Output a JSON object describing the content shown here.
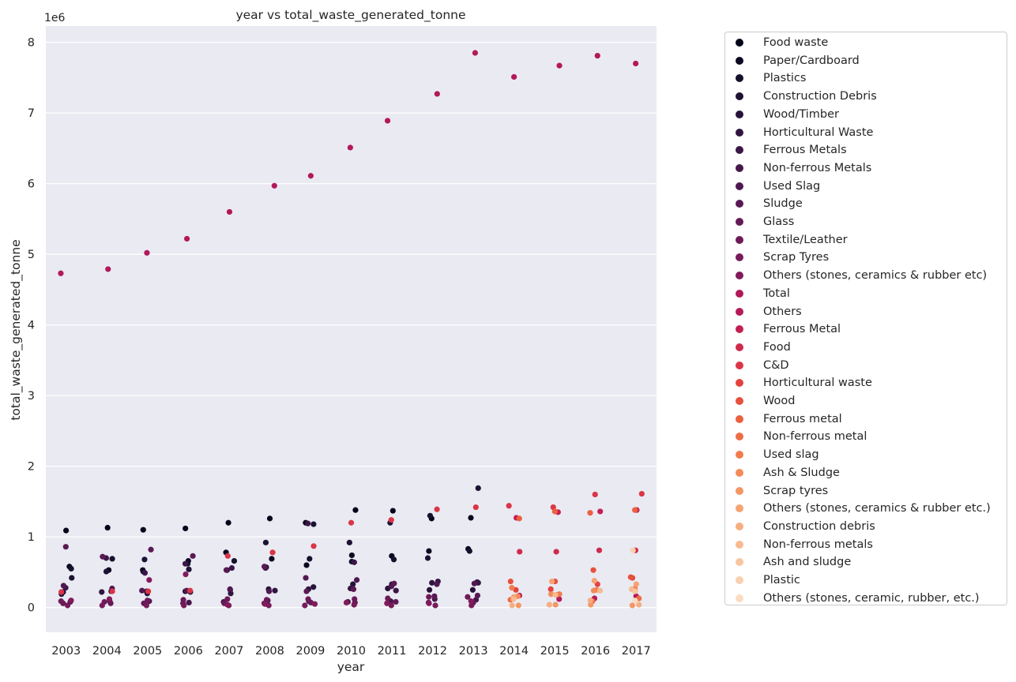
{
  "chart_data": {
    "type": "scatter",
    "title": "year vs total_waste_generated_tonne",
    "xlabel": "year",
    "ylabel": "total_waste_generated_tonne",
    "y_scale_label": "1e6",
    "ylim": [
      -350000,
      8230000
    ],
    "y_ticks": [
      0,
      1000000,
      2000000,
      3000000,
      4000000,
      5000000,
      6000000,
      7000000,
      8000000
    ],
    "y_tick_labels": [
      "0",
      "1",
      "2",
      "3",
      "4",
      "5",
      "6",
      "7",
      "8"
    ],
    "categories": [
      "2003",
      "2004",
      "2005",
      "2006",
      "2007",
      "2008",
      "2009",
      "2010",
      "2011",
      "2012",
      "2013",
      "2014",
      "2015",
      "2016",
      "2017"
    ],
    "grid": true,
    "legend_position": "outside right",
    "series": [
      {
        "name": "Food waste",
        "color": "#03051a",
        "points": [
          [
            2003,
            1090000
          ],
          [
            2004,
            1130000
          ],
          [
            2005,
            1100000
          ],
          [
            2006,
            1120000
          ],
          [
            2007,
            1200000
          ],
          [
            2008,
            1260000
          ],
          [
            2009,
            1200000
          ],
          [
            2010,
            1380000
          ],
          [
            2011,
            1370000
          ],
          [
            2012,
            1260000
          ],
          [
            2013,
            1270000
          ]
        ]
      },
      {
        "name": "Paper/Cardboard",
        "color": "#0c0822",
        "points": [
          [
            2003,
            580000
          ],
          [
            2004,
            530000
          ],
          [
            2005,
            530000
          ],
          [
            2006,
            660000
          ],
          [
            2007,
            780000
          ],
          [
            2008,
            690000
          ],
          [
            2009,
            600000
          ],
          [
            2010,
            740000
          ],
          [
            2011,
            730000
          ],
          [
            2012,
            800000
          ],
          [
            2013,
            830000
          ]
        ]
      },
      {
        "name": "Plastics",
        "color": "#15102b",
        "points": [
          [
            2003,
            550000
          ],
          [
            2004,
            690000
          ],
          [
            2005,
            510000
          ],
          [
            2006,
            620000
          ],
          [
            2007,
            660000
          ],
          [
            2008,
            570000
          ],
          [
            2009,
            690000
          ],
          [
            2010,
            650000
          ],
          [
            2011,
            680000
          ],
          [
            2012,
            1300000
          ],
          [
            2013,
            800000
          ]
        ]
      },
      {
        "name": "Construction Debris",
        "color": "#1d1233",
        "points": [
          [
            2003,
            420000
          ],
          [
            2004,
            510000
          ],
          [
            2005,
            680000
          ],
          [
            2006,
            540000
          ],
          [
            2007,
            530000
          ],
          [
            2008,
            920000
          ],
          [
            2009,
            1180000
          ],
          [
            2010,
            920000
          ],
          [
            2011,
            1200000
          ],
          [
            2012,
            700000
          ],
          [
            2013,
            1690000
          ]
        ]
      },
      {
        "name": "Wood/Timber",
        "color": "#27133a",
        "points": [
          [
            2003,
            220000
          ],
          [
            2004,
            230000
          ],
          [
            2005,
            200000
          ],
          [
            2006,
            230000
          ],
          [
            2007,
            250000
          ],
          [
            2008,
            260000
          ],
          [
            2009,
            290000
          ],
          [
            2010,
            330000
          ],
          [
            2011,
            270000
          ],
          [
            2012,
            250000
          ],
          [
            2013,
            250000
          ]
        ]
      },
      {
        "name": "Horticultural Waste",
        "color": "#311540",
        "points": [
          [
            2003,
            190000
          ],
          [
            2004,
            220000
          ],
          [
            2005,
            230000
          ],
          [
            2006,
            220000
          ],
          [
            2007,
            200000
          ],
          [
            2008,
            240000
          ],
          [
            2009,
            260000
          ],
          [
            2010,
            270000
          ],
          [
            2011,
            330000
          ],
          [
            2012,
            350000
          ],
          [
            2013,
            360000
          ]
        ]
      },
      {
        "name": "Ferrous Metals",
        "color": "#3b1646",
        "points": [
          [
            2003,
            280000
          ],
          [
            2004,
            700000
          ],
          [
            2005,
            490000
          ],
          [
            2006,
            620000
          ],
          [
            2007,
            560000
          ],
          [
            2008,
            560000
          ],
          [
            2009,
            1190000
          ],
          [
            2010,
            640000
          ],
          [
            2011,
            240000
          ],
          [
            2012,
            370000
          ],
          [
            2013,
            350000
          ]
        ]
      },
      {
        "name": "Non-ferrous Metals",
        "color": "#45174b",
        "points": [
          [
            2003,
            80000
          ],
          [
            2004,
            90000
          ],
          [
            2005,
            90000
          ],
          [
            2006,
            70000
          ],
          [
            2007,
            80000
          ],
          [
            2008,
            100000
          ],
          [
            2009,
            90000
          ],
          [
            2010,
            80000
          ],
          [
            2011,
            90000
          ],
          [
            2012,
            120000
          ],
          [
            2013,
            110000
          ]
        ]
      },
      {
        "name": "Used Slag",
        "color": "#4f1850",
        "points": [
          [
            2003,
            310000
          ],
          [
            2004,
            270000
          ],
          [
            2005,
            240000
          ],
          [
            2006,
            240000
          ],
          [
            2007,
            260000
          ],
          [
            2008,
            230000
          ],
          [
            2009,
            420000
          ],
          [
            2010,
            390000
          ],
          [
            2011,
            300000
          ],
          [
            2012,
            330000
          ],
          [
            2013,
            340000
          ]
        ]
      },
      {
        "name": "Sludge",
        "color": "#591953",
        "points": [
          [
            2003,
            860000
          ],
          [
            2004,
            720000
          ],
          [
            2005,
            820000
          ],
          [
            2006,
            730000
          ],
          [
            2007,
            530000
          ],
          [
            2008,
            580000
          ],
          [
            2009,
            230000
          ],
          [
            2010,
            260000
          ],
          [
            2011,
            340000
          ],
          [
            2012,
            160000
          ],
          [
            2013,
            170000
          ]
        ]
      },
      {
        "name": "Glass",
        "color": "#631a56",
        "points": [
          [
            2003,
            60000
          ],
          [
            2004,
            60000
          ],
          [
            2005,
            60000
          ],
          [
            2006,
            60000
          ],
          [
            2007,
            60000
          ],
          [
            2008,
            60000
          ],
          [
            2009,
            70000
          ],
          [
            2010,
            70000
          ],
          [
            2011,
            80000
          ],
          [
            2012,
            70000
          ],
          [
            2013,
            70000
          ]
        ]
      },
      {
        "name": "Textile/Leather",
        "color": "#6d1a58",
        "points": [
          [
            2003,
            90000
          ],
          [
            2004,
            80000
          ],
          [
            2005,
            100000
          ],
          [
            2006,
            110000
          ],
          [
            2007,
            120000
          ],
          [
            2008,
            110000
          ],
          [
            2009,
            120000
          ],
          [
            2010,
            120000
          ],
          [
            2011,
            130000
          ],
          [
            2012,
            150000
          ],
          [
            2013,
            150000
          ]
        ]
      },
      {
        "name": "Scrap Tyres",
        "color": "#771b5a",
        "points": [
          [
            2003,
            30000
          ],
          [
            2004,
            30000
          ],
          [
            2005,
            30000
          ],
          [
            2006,
            30000
          ],
          [
            2007,
            30000
          ],
          [
            2008,
            30000
          ],
          [
            2009,
            30000
          ],
          [
            2010,
            40000
          ],
          [
            2011,
            30000
          ],
          [
            2012,
            30000
          ],
          [
            2013,
            30000
          ]
        ]
      },
      {
        "name": "Others (stones, ceramics & rubber etc)",
        "color": "#821a5b",
        "points": [
          [
            2003,
            100000
          ],
          [
            2004,
            120000
          ],
          [
            2005,
            390000
          ],
          [
            2006,
            470000
          ],
          [
            2007,
            40000
          ],
          [
            2008,
            50000
          ],
          [
            2009,
            50000
          ],
          [
            2010,
            70000
          ],
          [
            2011,
            60000
          ],
          [
            2012,
            60000
          ],
          [
            2013,
            90000
          ]
        ]
      },
      {
        "name": "Total",
        "color": "#b1195a",
        "points": [
          [
            2003,
            4730000
          ],
          [
            2004,
            4790000
          ],
          [
            2005,
            5020000
          ],
          [
            2006,
            5220000
          ],
          [
            2007,
            5600000
          ],
          [
            2008,
            5970000
          ],
          [
            2009,
            6110000
          ],
          [
            2010,
            6510000
          ],
          [
            2011,
            6890000
          ],
          [
            2012,
            7270000
          ],
          [
            2013,
            7850000
          ],
          [
            2014,
            7510000
          ],
          [
            2015,
            7670000
          ],
          [
            2016,
            7810000
          ],
          [
            2017,
            7700000
          ]
        ]
      },
      {
        "name": "Others",
        "color": "#b51a59",
        "points": [
          [
            2014,
            170000
          ],
          [
            2015,
            120000
          ],
          [
            2016,
            130000
          ],
          [
            2017,
            160000
          ]
        ]
      },
      {
        "name": "Ferrous Metal",
        "color": "#c31f53",
        "points": [
          [
            2014,
            1270000
          ],
          [
            2015,
            1350000
          ],
          [
            2016,
            1360000
          ],
          [
            2017,
            1380000
          ]
        ]
      },
      {
        "name": "Food",
        "color": "#cf2a4d",
        "points": [
          [
            2014,
            790000
          ],
          [
            2015,
            790000
          ],
          [
            2016,
            810000
          ],
          [
            2017,
            810000
          ]
        ]
      },
      {
        "name": "C&D",
        "color": "#da3546",
        "points": [
          [
            2003,
            220000
          ],
          [
            2004,
            230000
          ],
          [
            2005,
            230000
          ],
          [
            2006,
            240000
          ],
          [
            2007,
            730000
          ],
          [
            2008,
            780000
          ],
          [
            2009,
            870000
          ],
          [
            2010,
            1200000
          ],
          [
            2011,
            1240000
          ],
          [
            2012,
            1390000
          ],
          [
            2013,
            1420000
          ],
          [
            2014,
            1440000
          ],
          [
            2015,
            1420000
          ],
          [
            2016,
            1600000
          ],
          [
            2017,
            1610000
          ]
        ]
      },
      {
        "name": "Horticultural waste",
        "color": "#e3423f",
        "points": [
          [
            2014,
            250000
          ],
          [
            2015,
            260000
          ],
          [
            2016,
            330000
          ],
          [
            2017,
            420000
          ]
        ]
      },
      {
        "name": "Wood",
        "color": "#e8503e",
        "points": [
          [
            2014,
            370000
          ],
          [
            2015,
            370000
          ],
          [
            2016,
            530000
          ],
          [
            2017,
            430000
          ]
        ]
      },
      {
        "name": "Ferrous metal",
        "color": "#ec5f3f",
        "points": [
          [
            2014,
            1260000
          ],
          [
            2015,
            1360000
          ],
          [
            2016,
            1340000
          ],
          [
            2017,
            1380000
          ]
        ]
      },
      {
        "name": "Non-ferrous metal",
        "color": "#ef6d45",
        "points": [
          [
            2014,
            110000
          ],
          [
            2015,
            180000
          ],
          [
            2016,
            90000
          ],
          [
            2017,
            130000
          ]
        ]
      },
      {
        "name": "Used slag",
        "color": "#f17c4f",
        "points": [
          [
            2014,
            280000
          ],
          [
            2015,
            190000
          ],
          [
            2016,
            250000
          ],
          [
            2017,
            270000
          ]
        ]
      },
      {
        "name": "Ash & Sludge",
        "color": "#f38b5a",
        "points": [
          [
            2014,
            160000
          ],
          [
            2015,
            190000
          ],
          [
            2016,
            240000
          ],
          [
            2017,
            230000
          ]
        ]
      },
      {
        "name": "Scrap tyres",
        "color": "#f49765",
        "points": [
          [
            2014,
            30000
          ],
          [
            2015,
            40000
          ],
          [
            2016,
            40000
          ],
          [
            2017,
            30000
          ]
        ]
      },
      {
        "name": "Others (stones, ceramics & rubber etc.)",
        "color": "#f5a372",
        "points": [
          [
            2014,
            150000
          ],
          [
            2015,
            370000
          ],
          [
            2016,
            380000
          ],
          [
            2017,
            330000
          ]
        ]
      },
      {
        "name": "Construction debris",
        "color": "#f6ae80",
        "points": [
          [
            2014,
            30000
          ],
          [
            2015,
            40000
          ],
          [
            2016,
            100000
          ],
          [
            2017,
            40000
          ]
        ]
      },
      {
        "name": "Non-ferrous metals",
        "color": "#f7ba8f",
        "points": [
          [
            2014,
            120000
          ],
          [
            2015,
            180000
          ],
          [
            2016,
            240000
          ],
          [
            2017,
            260000
          ]
        ]
      },
      {
        "name": "Ash and sludge",
        "color": "#f8c59f",
        "points": [
          [
            2017,
            230000
          ]
        ]
      },
      {
        "name": "Plastic",
        "color": "#f9d0b0",
        "points": [
          [
            2017,
            810000
          ]
        ]
      },
      {
        "name": "Others (stones, ceramic, rubber, etc.)",
        "color": "#fadcc2",
        "points": [
          [
            2017,
            100000
          ]
        ]
      }
    ]
  }
}
